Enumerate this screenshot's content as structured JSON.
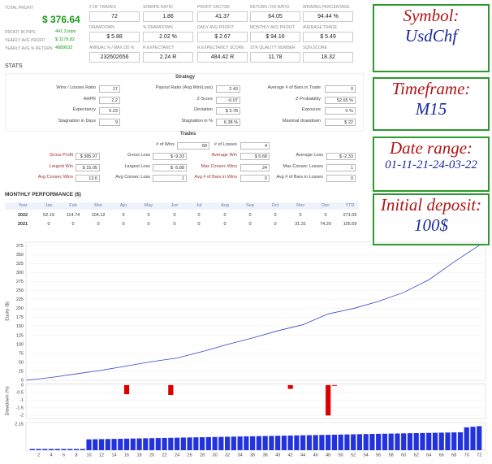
{
  "summary": {
    "total": {
      "label": "TOTAL PROFIT",
      "value": "$ 376.64"
    },
    "side": [
      {
        "label": "PROFIT IN PIPS",
        "value": "441.3 pips"
      },
      {
        "label": "YEARLY AVG PROFIT",
        "value": "$ 1179.82"
      },
      {
        "label": "YEARLY AVG % RETURN",
        "value": "4889632"
      }
    ],
    "tiles": [
      [
        {
          "label": "# OF TRADES",
          "value": "72"
        },
        {
          "label": "SHARPE RATIO",
          "value": "1.86"
        },
        {
          "label": "PROFIT FACTOR",
          "value": "41.37"
        },
        {
          "label": "RETURN / DD RATIO",
          "value": "64.05"
        },
        {
          "label": "WINNING PERCENTAGE",
          "value": "94.44 %"
        }
      ],
      [
        {
          "label": "DRAWDOWN",
          "value": "$ 5.88"
        },
        {
          "label": "% DRAWDOWN",
          "value": "2.02 %"
        },
        {
          "label": "DAILY AVG PROFIT",
          "value": "$ 2.67"
        },
        {
          "label": "MONTHLY AVG PROFIT",
          "value": "$ 94.16"
        },
        {
          "label": "AVERAGE TRADE",
          "value": "$ 5.49"
        }
      ],
      [
        {
          "label": "ANNUAL % / MAX DD %",
          "value": "232602656"
        },
        {
          "label": "R EXPECTANCY",
          "value": "2.24 R"
        },
        {
          "label": "R EXPECTANCY SCORE",
          "value": "484.42 R"
        },
        {
          "label": "STR QUALITY NUMBER",
          "value": "11.78"
        },
        {
          "label": "SQN SCORE",
          "value": "18.32"
        }
      ]
    ]
  },
  "stats_title": "STATS",
  "strategy": {
    "title": "Strategy",
    "rows": [
      [
        "Wins / Losses Ratio",
        "17",
        "Payout Ratio (Avg Win/Loss)",
        "2.43",
        "Average # of Bars in Trade",
        "0"
      ],
      [
        "AHPR",
        "2.2",
        "Z-Score",
        "-0.07",
        "Z-Probability",
        "52.65 %"
      ],
      [
        "Expectancy",
        "5.23",
        "Deviation",
        "$ 3.78",
        "Exposure",
        "0 %"
      ],
      [
        "Stagnation in Days",
        "9",
        "Stagnation in %",
        "6.38 %",
        "Maximal drawdown",
        "$ 22"
      ]
    ]
  },
  "trades": {
    "title": "Trades",
    "top": [
      "# of Wins",
      "68",
      "# of Losses",
      "4"
    ],
    "rows": [
      [
        "Gross Profit",
        "$ 385.97",
        "Gross Loss",
        "$ -9.33",
        "Average Win",
        "$ 5.68",
        "Average Loss",
        "$ -2.33"
      ],
      [
        "Largest Win",
        "$ 15.05",
        "Largest Loss",
        "$ -5.88",
        "Max Consec Wins",
        "24",
        "Max Consec Losses",
        "1"
      ],
      [
        "Avg Consec Wins",
        "13.6",
        "Avg Consec Loss",
        "1",
        "Avg # of Bars in Wins",
        "0",
        "Avg # of Bars in Losses",
        "0"
      ]
    ]
  },
  "monthly": {
    "title": "MONTHLY PERFORMANCE ($)",
    "header": [
      "Year",
      "Jan",
      "Feb",
      "Mar",
      "Apr",
      "May",
      "Jun",
      "Jul",
      "Aug",
      "Sep",
      "Oct",
      "Nov",
      "Dec",
      "YTD"
    ],
    "rows": [
      [
        "2022",
        "52.19",
        "114.74",
        "104.12",
        "0",
        "0",
        "0",
        "0",
        "0",
        "0",
        "0",
        "0",
        "0",
        "271.05"
      ],
      [
        "2021",
        "0",
        "0",
        "0",
        "0",
        "0",
        "0",
        "0",
        "0",
        "0",
        "0",
        "31.31",
        "74.20",
        "105.59"
      ]
    ]
  },
  "info": [
    {
      "label": "Symbol:",
      "value": "UsdChf"
    },
    {
      "label": "Timeframe:",
      "value": "M15"
    },
    {
      "label": "Date range:",
      "value": "01-11-21-24-03-22"
    },
    {
      "label": "Initial deposit:",
      "value": "100$"
    }
  ],
  "chart_data": [
    {
      "type": "line",
      "ylabel": "Equity ($)",
      "color": "#3344cc",
      "x": [
        0,
        4,
        8,
        12,
        16,
        20,
        24,
        28,
        32,
        36,
        40,
        44,
        48,
        52,
        56,
        60,
        64,
        68,
        72
      ],
      "values": [
        0,
        8,
        18,
        28,
        40,
        52,
        62,
        80,
        100,
        118,
        138,
        155,
        185,
        200,
        220,
        245,
        280,
        330,
        376
      ],
      "xlim": [
        0,
        73
      ],
      "ylim": [
        0,
        385
      ],
      "yticks": [
        0,
        25,
        50,
        75,
        100,
        125,
        150,
        175,
        200,
        225,
        250,
        275,
        300,
        325,
        350,
        375
      ],
      "grid": true
    },
    {
      "type": "bar",
      "ylabel": "Drawdown (%)",
      "color": "#dd0000",
      "x": [
        16,
        23,
        42,
        48,
        49
      ],
      "values": [
        -0.6,
        -0.65,
        -0.25,
        -2.0,
        -0.05
      ],
      "xlim": [
        0,
        73
      ],
      "ylim": [
        -2.2,
        0.1
      ],
      "yticks": [
        0,
        -0.5,
        -1,
        -1.5,
        -2
      ],
      "grid": true
    },
    {
      "type": "bar",
      "color": "#2233dd",
      "x": [
        1,
        2,
        3,
        4,
        5,
        6,
        7,
        8,
        9,
        10,
        11,
        12,
        13,
        14,
        15,
        16,
        17,
        18,
        19,
        20,
        21,
        22,
        23,
        24,
        25,
        26,
        27,
        28,
        29,
        30,
        31,
        32,
        33,
        34,
        35,
        36,
        37,
        38,
        39,
        40,
        41,
        42,
        43,
        44,
        45,
        46,
        47,
        48,
        49,
        50,
        51,
        52,
        53,
        54,
        55,
        56,
        57,
        58,
        59,
        60,
        61,
        62,
        63,
        64,
        65,
        66,
        67,
        68,
        69,
        70,
        71,
        72
      ],
      "values": [
        0.1,
        0.1,
        0.1,
        0.1,
        0.1,
        0.1,
        0.1,
        0.1,
        0.1,
        0.9,
        0.91,
        0.92,
        0.93,
        0.94,
        0.95,
        0.96,
        0.97,
        0.98,
        0.99,
        1.0,
        1.01,
        1.02,
        1.03,
        1.04,
        1.05,
        1.06,
        1.07,
        1.08,
        1.09,
        1.1,
        1.11,
        1.12,
        1.13,
        1.14,
        1.15,
        1.16,
        1.17,
        1.18,
        1.19,
        1.2,
        1.21,
        1.22,
        1.23,
        1.24,
        1.25,
        1.26,
        1.27,
        1.28,
        1.29,
        1.3,
        1.31,
        1.32,
        1.33,
        1.34,
        1.35,
        1.36,
        1.37,
        1.38,
        1.39,
        1.4,
        1.41,
        1.42,
        1.43,
        1.44,
        1.45,
        1.46,
        1.47,
        1.48,
        1.49,
        1.9,
        1.95,
        2.0
      ],
      "xlim": [
        0,
        73
      ],
      "ylim": [
        0,
        2.3
      ],
      "yticks": [
        2.15
      ],
      "xticks": [
        2,
        4,
        6,
        8,
        10,
        12,
        14,
        16,
        18,
        20,
        22,
        24,
        26,
        28,
        30,
        32,
        34,
        36,
        38,
        40,
        42,
        44,
        46,
        48,
        50,
        52,
        54,
        56,
        58,
        60,
        62,
        64,
        66,
        68,
        70,
        72
      ]
    }
  ]
}
